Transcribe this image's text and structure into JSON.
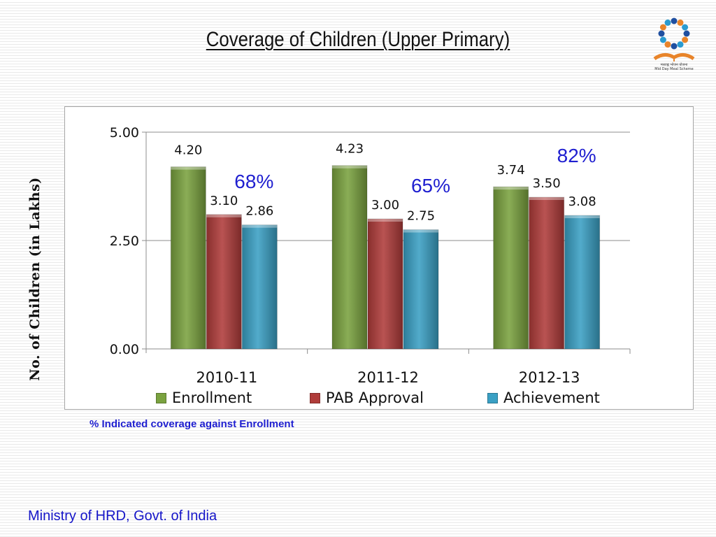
{
  "slide": {
    "title": "Coverage of Children  (Upper Primary)",
    "y_axis_label": "No. of Children (in Lakhs)",
    "note": "% Indicated coverage against Enrollment",
    "footer": "Ministry of HRD, Govt. of India",
    "logo": {
      "icon": "mid-day-meal-scheme-logo",
      "caption_line1": "मध्याह्न भोजन योजना",
      "caption_line2": "Mid Day Meal Scheme"
    }
  },
  "chart_data": {
    "type": "bar",
    "categories": [
      "2010-11",
      "2011-12",
      "2012-13"
    ],
    "series": [
      {
        "name": "Enrollment",
        "values": [
          4.2,
          4.23,
          3.74
        ],
        "labels": [
          "4.20",
          "4.23",
          "3.74"
        ],
        "color": "#7aa23f"
      },
      {
        "name": "PAB Approval",
        "values": [
          3.1,
          3.0,
          3.5
        ],
        "labels": [
          "3.10",
          "3.00",
          "3.50"
        ],
        "color": "#b03c3a"
      },
      {
        "name": "Achievement",
        "values": [
          2.86,
          2.75,
          3.08
        ],
        "labels": [
          "2.86",
          "2.75",
          "3.08"
        ],
        "color": "#3aa0c4"
      }
    ],
    "annotations": [
      "68%",
      "65%",
      "82%"
    ],
    "annotation_color": "#1f1fd0",
    "ylim": [
      0,
      5
    ],
    "yticks": [
      "0.00",
      "2.50",
      "5.00"
    ],
    "ylabel": "No. of Children (in Lakhs)",
    "grid": true,
    "legend_position": "bottom"
  }
}
